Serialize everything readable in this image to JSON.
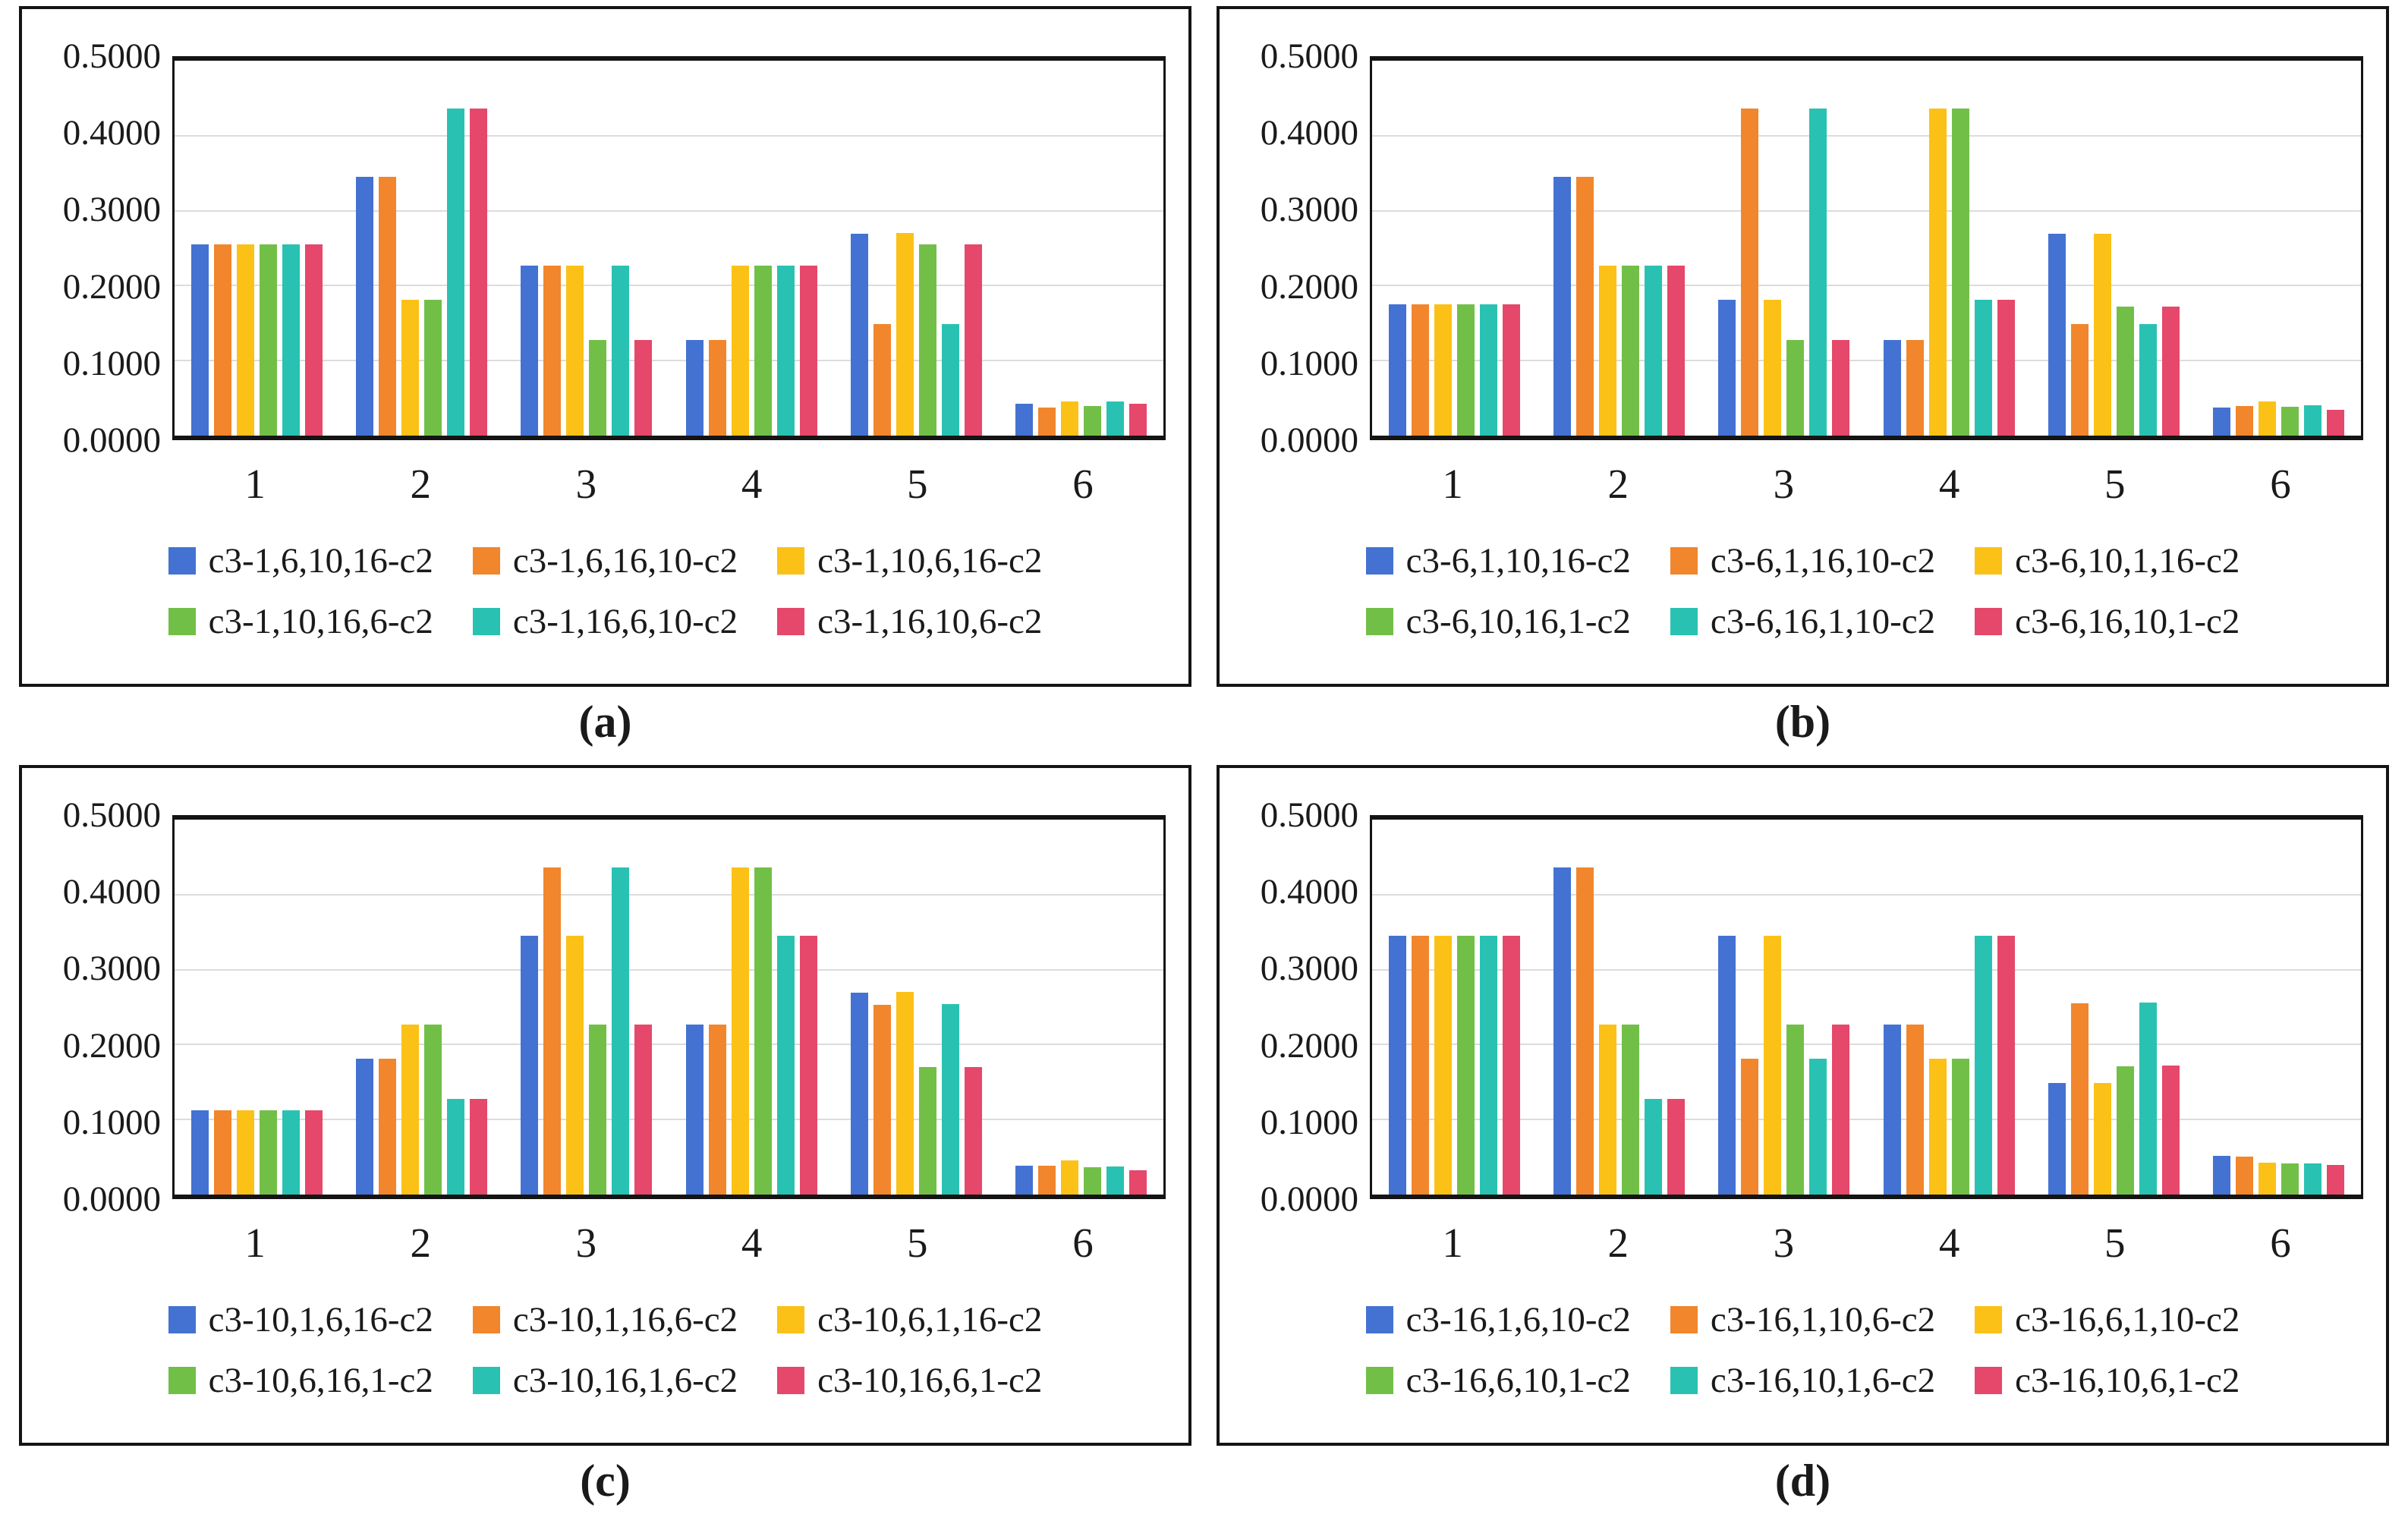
{
  "figure": {
    "background": "#ffffff",
    "panel_border_color": "#141414",
    "gridline_color": "#dcdcdc",
    "palette": {
      "blue": "#4472D2",
      "orange": "#F1862C",
      "yellow": "#FBC117",
      "green": "#72BF48",
      "teal": "#29C2B2",
      "red": "#E5486A"
    }
  },
  "chart_data": [
    {
      "id": "a",
      "caption": "(a)",
      "type": "bar",
      "categories": [
        "1",
        "2",
        "3",
        "4",
        "5",
        "6"
      ],
      "y_ticks": [
        "0.5000",
        "0.4000",
        "0.3000",
        "0.2000",
        "0.1000",
        "0.0000"
      ],
      "ylim": [
        0,
        0.5
      ],
      "grid": true,
      "legend_position": "bottom",
      "series": [
        {
          "name": "c3-1,6,10,16-c2",
          "color": "blue",
          "values": [
            0.2553,
            0.3447,
            0.227,
            0.1277,
            0.2688,
            0.0426
          ]
        },
        {
          "name": "c3-1,6,16,10-c2",
          "color": "orange",
          "values": [
            0.2553,
            0.3447,
            0.227,
            0.1277,
            0.1489,
            0.0372
          ]
        },
        {
          "name": "c3-1,10,6,16-c2",
          "color": "yellow",
          "values": [
            0.2553,
            0.1809,
            0.227,
            0.227,
            0.2702,
            0.046
          ]
        },
        {
          "name": "c3-1,10,16,6-c2",
          "color": "green",
          "values": [
            0.2553,
            0.1809,
            0.1277,
            0.227,
            0.2553,
            0.0394
          ]
        },
        {
          "name": "c3-1,16,6,10-c2",
          "color": "teal",
          "values": [
            0.2553,
            0.4362,
            0.227,
            0.227,
            0.1489,
            0.046
          ]
        },
        {
          "name": "c3-1,16,10,6-c2",
          "color": "red",
          "values": [
            0.2553,
            0.4362,
            0.1277,
            0.227,
            0.2553,
            0.043
          ]
        }
      ]
    },
    {
      "id": "b",
      "caption": "(b)",
      "type": "bar",
      "categories": [
        "1",
        "2",
        "3",
        "4",
        "5",
        "6"
      ],
      "y_ticks": [
        "0.5000",
        "0.4000",
        "0.3000",
        "0.2000",
        "0.1000",
        "0.0000"
      ],
      "ylim": [
        0,
        0.5
      ],
      "grid": true,
      "legend_position": "bottom",
      "series": [
        {
          "name": "c3-6,1,10,16-c2",
          "color": "blue",
          "values": [
            0.1755,
            0.3447,
            0.1809,
            0.1277,
            0.2688,
            0.0371
          ]
        },
        {
          "name": "c3-6,1,16,10-c2",
          "color": "orange",
          "values": [
            0.1755,
            0.3447,
            0.4362,
            0.1277,
            0.1489,
            0.0397
          ]
        },
        {
          "name": "c3-6,10,1,16-c2",
          "color": "yellow",
          "values": [
            0.1755,
            0.227,
            0.1809,
            0.4362,
            0.2688,
            0.0458
          ]
        },
        {
          "name": "c3-6,10,16,1-c2",
          "color": "green",
          "values": [
            0.1755,
            0.227,
            0.1277,
            0.4362,
            0.1717,
            0.0387
          ]
        },
        {
          "name": "c3-6,16,1,10-c2",
          "color": "teal",
          "values": [
            0.1755,
            0.227,
            0.4362,
            0.1809,
            0.1489,
            0.041
          ]
        },
        {
          "name": "c3-6,16,10,1-c2",
          "color": "red",
          "values": [
            0.1755,
            0.227,
            0.1277,
            0.1809,
            0.1717,
            0.0348
          ]
        }
      ]
    },
    {
      "id": "c",
      "caption": "(c)",
      "type": "bar",
      "categories": [
        "1",
        "2",
        "3",
        "4",
        "5",
        "6"
      ],
      "y_ticks": [
        "0.5000",
        "0.4000",
        "0.3000",
        "0.2000",
        "0.1000",
        "0.0000"
      ],
      "ylim": [
        0,
        0.5
      ],
      "grid": true,
      "legend_position": "bottom",
      "series": [
        {
          "name": "c3-10,1,6,16-c2",
          "color": "blue",
          "values": [
            0.1128,
            0.1809,
            0.3447,
            0.227,
            0.2697,
            0.0385
          ]
        },
        {
          "name": "c3-10,1,16,6-c2",
          "color": "orange",
          "values": [
            0.1128,
            0.1809,
            0.4362,
            0.227,
            0.2533,
            0.0385
          ]
        },
        {
          "name": "c3-10,6,1,16-c2",
          "color": "yellow",
          "values": [
            0.1128,
            0.227,
            0.3447,
            0.4362,
            0.2704,
            0.0451
          ]
        },
        {
          "name": "c3-10,6,16,1-c2",
          "color": "green",
          "values": [
            0.1128,
            0.227,
            0.227,
            0.4362,
            0.1701,
            0.0368
          ]
        },
        {
          "name": "c3-10,16,1,6-c2",
          "color": "teal",
          "values": [
            0.1128,
            0.1277,
            0.4362,
            0.3447,
            0.2539,
            0.0375
          ]
        },
        {
          "name": "c3-10,16,6,1-c2",
          "color": "red",
          "values": [
            0.1128,
            0.1277,
            0.227,
            0.3447,
            0.1701,
            0.0329
          ]
        }
      ]
    },
    {
      "id": "d",
      "caption": "(d)",
      "type": "bar",
      "categories": [
        "1",
        "2",
        "3",
        "4",
        "5",
        "6"
      ],
      "y_ticks": [
        "0.5000",
        "0.4000",
        "0.3000",
        "0.2000",
        "0.1000",
        "0.0000"
      ],
      "ylim": [
        0,
        0.5
      ],
      "grid": true,
      "legend_position": "bottom",
      "series": [
        {
          "name": "c3-16,1,6,10-c2",
          "color": "blue",
          "values": [
            0.3447,
            0.4362,
            0.3447,
            0.227,
            0.1485,
            0.0512
          ]
        },
        {
          "name": "c3-16,1,10,6-c2",
          "color": "orange",
          "values": [
            0.3447,
            0.4362,
            0.1809,
            0.227,
            0.2551,
            0.0505
          ]
        },
        {
          "name": "c3-16,6,1,10-c2",
          "color": "yellow",
          "values": [
            0.3447,
            0.227,
            0.3447,
            0.1809,
            0.1485,
            0.0429
          ]
        },
        {
          "name": "c3-16,6,10,1-c2",
          "color": "green",
          "values": [
            0.3447,
            0.227,
            0.227,
            0.1809,
            0.1709,
            0.0419
          ]
        },
        {
          "name": "c3-16,10,1,6-c2",
          "color": "teal",
          "values": [
            0.3447,
            0.1277,
            0.1809,
            0.3447,
            0.2558,
            0.0419
          ]
        },
        {
          "name": "c3-16,10,6,1-c2",
          "color": "red",
          "values": [
            0.3447,
            0.1277,
            0.227,
            0.3447,
            0.1716,
            0.0396
          ]
        }
      ]
    }
  ]
}
